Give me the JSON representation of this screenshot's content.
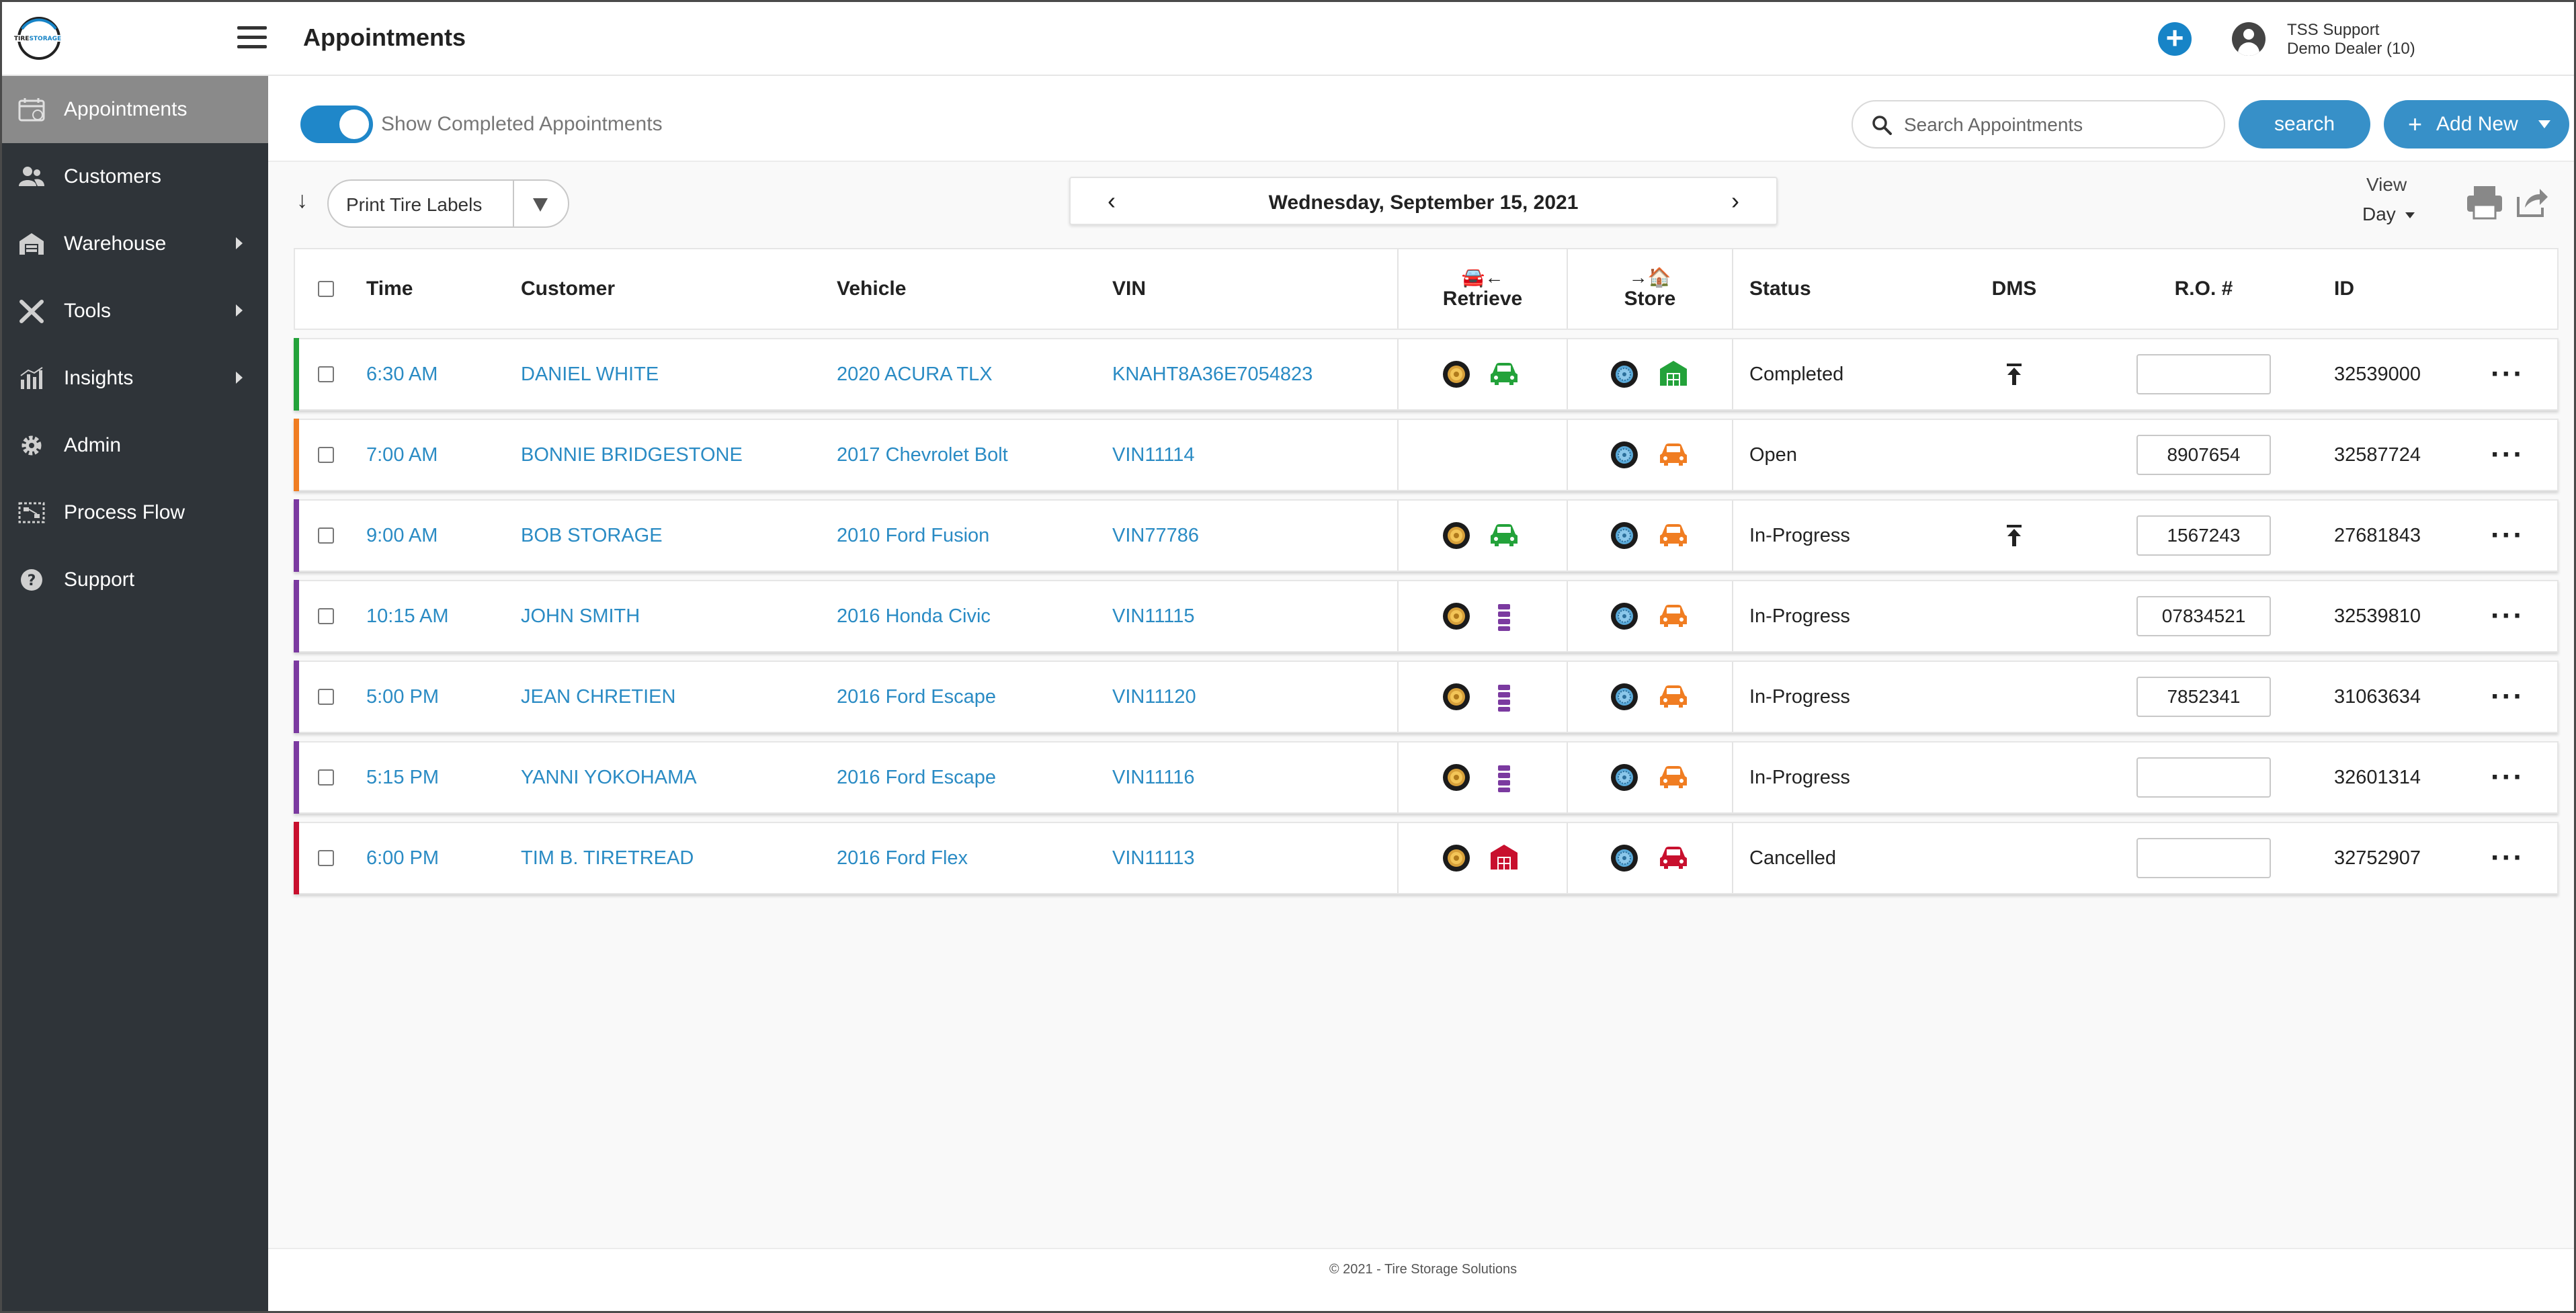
{
  "header": {
    "title": "Appointments",
    "user_name": "TSS Support",
    "dealer": "Demo Dealer (10)"
  },
  "sidebar": {
    "items": [
      {
        "label": "Appointments",
        "icon": "calendar-icon",
        "active": true
      },
      {
        "label": "Customers",
        "icon": "users-icon"
      },
      {
        "label": "Warehouse",
        "icon": "warehouse-icon",
        "submenu": true
      },
      {
        "label": "Tools",
        "icon": "tools-icon",
        "submenu": true
      },
      {
        "label": "Insights",
        "icon": "chart-icon",
        "submenu": true
      },
      {
        "label": "Admin",
        "icon": "gear-icon"
      },
      {
        "label": "Process Flow",
        "icon": "process-flow-icon"
      },
      {
        "label": "Support",
        "icon": "help-icon"
      }
    ]
  },
  "toolbar": {
    "toggle_label": "Show Completed Appointments",
    "toggle_on": true,
    "search_placeholder": "Search Appointments",
    "search_button": "search",
    "add_new": "Add New",
    "print_labels": "Print Tire Labels",
    "date": "Wednesday, September 15, 2021",
    "view_label": "View",
    "view_value": "Day"
  },
  "table": {
    "headers": {
      "time": "Time",
      "customer": "Customer",
      "vehicle": "Vehicle",
      "vin": "VIN",
      "retrieve": "Retrieve",
      "store": "Store",
      "status": "Status",
      "dms": "DMS",
      "ro": "R.O. #",
      "id": "ID"
    },
    "rows": [
      {
        "time": "6:30 AM",
        "customer": "DANIEL WHITE",
        "vehicle": "2020 ACURA TLX",
        "vin": "KNAHT8A36E7054823",
        "status": "Completed",
        "ro": "",
        "id": "32539000",
        "bar_color": "#23a23a",
        "retrieve_icon": "car-icon",
        "retrieve_color": "#23a23a",
        "store_icon": "warehouse-icon",
        "store_color": "#23a23a",
        "dms": true,
        "has_retrieve": true
      },
      {
        "time": "7:00 AM",
        "customer": "BONNIE BRIDGESTONE",
        "vehicle": "2017 Chevrolet Bolt",
        "vin": "VIN11114",
        "status": "Open",
        "ro": "8907654",
        "id": "32587724",
        "bar_color": "#f07d22",
        "retrieve_icon": "",
        "retrieve_color": "",
        "store_icon": "car-icon",
        "store_color": "#f07d22",
        "dms": false,
        "has_retrieve": false
      },
      {
        "time": "9:00 AM",
        "customer": "BOB STORAGE",
        "vehicle": "2010 Ford Fusion",
        "vin": "VIN77786",
        "status": "In-Progress",
        "ro": "1567243",
        "id": "27681843",
        "bar_color": "#7b3aa0",
        "retrieve_icon": "car-icon",
        "retrieve_color": "#23a23a",
        "store_icon": "car-icon",
        "store_color": "#f07d22",
        "dms": true,
        "has_retrieve": true
      },
      {
        "time": "10:15 AM",
        "customer": "JOHN SMITH",
        "vehicle": "2016 Honda Civic",
        "vin": "VIN11115",
        "status": "In-Progress",
        "ro": "07834521",
        "id": "32539810",
        "bar_color": "#7b3aa0",
        "retrieve_icon": "tire-stack-icon",
        "retrieve_color": "#7b3aa0",
        "store_icon": "car-icon",
        "store_color": "#f07d22",
        "dms": false,
        "has_retrieve": true
      },
      {
        "time": "5:00 PM",
        "customer": "JEAN CHRETIEN",
        "vehicle": "2016 Ford Escape",
        "vin": "VIN11120",
        "status": "In-Progress",
        "ro": "7852341",
        "id": "31063634",
        "bar_color": "#7b3aa0",
        "retrieve_icon": "tire-stack-icon",
        "retrieve_color": "#7b3aa0",
        "store_icon": "car-icon",
        "store_color": "#f07d22",
        "dms": false,
        "has_retrieve": true
      },
      {
        "time": "5:15 PM",
        "customer": "YANNI YOKOHAMA",
        "vehicle": "2016 Ford Escape",
        "vin": "VIN11116",
        "status": "In-Progress",
        "ro": "",
        "id": "32601314",
        "bar_color": "#7b3aa0",
        "retrieve_icon": "tire-stack-icon",
        "retrieve_color": "#7b3aa0",
        "store_icon": "car-icon",
        "store_color": "#f07d22",
        "dms": false,
        "has_retrieve": true
      },
      {
        "time": "6:00 PM",
        "customer": "TIM B. TIRETREAD",
        "vehicle": "2016 Ford Flex",
        "vin": "VIN11113",
        "status": "Cancelled",
        "ro": "",
        "id": "32752907",
        "bar_color": "#c8102e",
        "retrieve_icon": "warehouse-icon",
        "retrieve_color": "#c8102e",
        "store_icon": "car-icon",
        "store_color": "#c8102e",
        "dms": false,
        "has_retrieve": true
      }
    ]
  },
  "footer": {
    "copyright": "© 2021 - Tire Storage Solutions"
  },
  "colors": {
    "accent": "#3790c8",
    "link": "#2a8bc4",
    "sidebar_bg": "#2f3439",
    "sidebar_active": "#8a8a8a"
  }
}
